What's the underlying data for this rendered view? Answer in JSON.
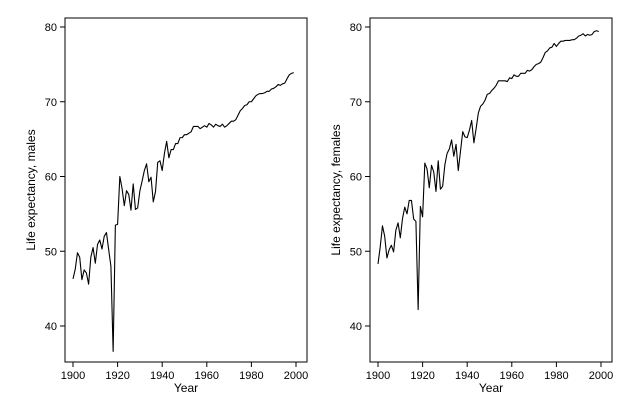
{
  "chart_data": [
    {
      "type": "line",
      "xlabel": "Year",
      "ylabel": "Life expectancy, males",
      "xlim": [
        1900,
        2000
      ],
      "ylim": [
        36,
        80
      ],
      "x_ticks": [
        1900,
        1920,
        1940,
        1960,
        1980,
        2000
      ],
      "y_ticks": [
        40,
        50,
        60,
        70,
        80
      ],
      "grid": false,
      "series": [
        {
          "x": [
            1900,
            1901,
            1902,
            1903,
            1904,
            1905,
            1906,
            1907,
            1908,
            1909,
            1910,
            1911,
            1912,
            1913,
            1914,
            1915,
            1916,
            1917,
            1918,
            1919,
            1920,
            1921,
            1922,
            1923,
            1924,
            1925,
            1926,
            1927,
            1928,
            1929,
            1930,
            1931,
            1932,
            1933,
            1934,
            1935,
            1936,
            1937,
            1938,
            1939,
            1940,
            1941,
            1942,
            1943,
            1944,
            1945,
            1946,
            1947,
            1948,
            1949,
            1950,
            1951,
            1952,
            1953,
            1954,
            1955,
            1956,
            1957,
            1958,
            1959,
            1960,
            1961,
            1962,
            1963,
            1964,
            1965,
            1966,
            1967,
            1968,
            1969,
            1970,
            1971,
            1972,
            1973,
            1974,
            1975,
            1976,
            1977,
            1978,
            1979,
            1980,
            1981,
            1982,
            1983,
            1984,
            1985,
            1986,
            1987,
            1988,
            1989,
            1990,
            1991,
            1992,
            1993,
            1994,
            1995,
            1996,
            1997,
            1998,
            1999
          ],
          "y": [
            46.3,
            47.6,
            49.8,
            49.2,
            46.2,
            47.5,
            47.1,
            45.6,
            49.2,
            50.5,
            48.4,
            50.9,
            51.5,
            50.3,
            52.0,
            52.5,
            50.2,
            48.0,
            36.6,
            53.5,
            53.6,
            60.0,
            58.4,
            56.1,
            58.1,
            57.6,
            55.5,
            59.0,
            55.6,
            55.8,
            58.1,
            59.4,
            60.8,
            61.7,
            59.3,
            59.9,
            56.6,
            58.0,
            61.9,
            62.1,
            60.8,
            63.1,
            64.7,
            62.5,
            63.6,
            63.6,
            64.4,
            64.4,
            65.2,
            65.2,
            65.6,
            65.6,
            65.8,
            66.0,
            66.7,
            66.7,
            66.7,
            66.4,
            66.6,
            66.8,
            66.6,
            67.1,
            66.9,
            66.6,
            67.0,
            66.8,
            66.7,
            67.0,
            66.6,
            66.8,
            67.1,
            67.4,
            67.4,
            67.6,
            68.2,
            68.8,
            69.1,
            69.5,
            69.6,
            70.0,
            70.0,
            70.4,
            70.8,
            71.0,
            71.1,
            71.1,
            71.2,
            71.4,
            71.4,
            71.7,
            71.8,
            72.0,
            72.3,
            72.2,
            72.4,
            72.5,
            73.1,
            73.6,
            73.8,
            73.9
          ]
        }
      ]
    },
    {
      "type": "line",
      "xlabel": "Year",
      "ylabel": "Life expectancy, females",
      "xlim": [
        1900,
        2000
      ],
      "ylim": [
        36,
        80
      ],
      "x_ticks": [
        1900,
        1920,
        1940,
        1960,
        1980,
        2000
      ],
      "y_ticks": [
        40,
        50,
        60,
        70,
        80
      ],
      "grid": false,
      "series": [
        {
          "x": [
            1900,
            1901,
            1902,
            1903,
            1904,
            1905,
            1906,
            1907,
            1908,
            1909,
            1910,
            1911,
            1912,
            1913,
            1914,
            1915,
            1916,
            1917,
            1918,
            1919,
            1920,
            1921,
            1922,
            1923,
            1924,
            1925,
            1926,
            1927,
            1928,
            1929,
            1930,
            1931,
            1932,
            1933,
            1934,
            1935,
            1936,
            1937,
            1938,
            1939,
            1940,
            1941,
            1942,
            1943,
            1944,
            1945,
            1946,
            1947,
            1948,
            1949,
            1950,
            1951,
            1952,
            1953,
            1954,
            1955,
            1956,
            1957,
            1958,
            1959,
            1960,
            1961,
            1962,
            1963,
            1964,
            1965,
            1966,
            1967,
            1968,
            1969,
            1970,
            1971,
            1972,
            1973,
            1974,
            1975,
            1976,
            1977,
            1978,
            1979,
            1980,
            1981,
            1982,
            1983,
            1984,
            1985,
            1986,
            1987,
            1988,
            1989,
            1990,
            1991,
            1992,
            1993,
            1994,
            1995,
            1996,
            1997,
            1998,
            1999
          ],
          "y": [
            48.3,
            50.6,
            53.4,
            52.0,
            49.1,
            50.2,
            50.8,
            49.9,
            52.8,
            53.8,
            51.8,
            54.4,
            55.9,
            55.0,
            56.8,
            56.8,
            54.3,
            54.0,
            42.2,
            56.0,
            54.6,
            61.8,
            61.0,
            58.5,
            61.5,
            60.6,
            58.0,
            62.1,
            58.3,
            58.7,
            61.6,
            63.1,
            63.7,
            64.9,
            62.7,
            64.3,
            60.8,
            63.4,
            66.0,
            65.3,
            65.2,
            66.2,
            67.5,
            64.5,
            66.4,
            68.5,
            69.4,
            69.7,
            70.2,
            71.0,
            71.1,
            71.5,
            71.8,
            72.2,
            72.8,
            72.8,
            72.8,
            72.8,
            72.7,
            73.2,
            73.1,
            73.6,
            73.4,
            73.4,
            73.8,
            73.8,
            73.8,
            74.2,
            74.1,
            74.3,
            74.7,
            75.0,
            75.1,
            75.3,
            75.9,
            76.6,
            76.8,
            77.2,
            77.3,
            77.8,
            77.4,
            77.8,
            78.1,
            78.1,
            78.2,
            78.2,
            78.2,
            78.3,
            78.3,
            78.5,
            78.8,
            78.9,
            79.1,
            78.8,
            79.0,
            78.9,
            79.0,
            79.4,
            79.5,
            79.4
          ]
        }
      ]
    }
  ]
}
